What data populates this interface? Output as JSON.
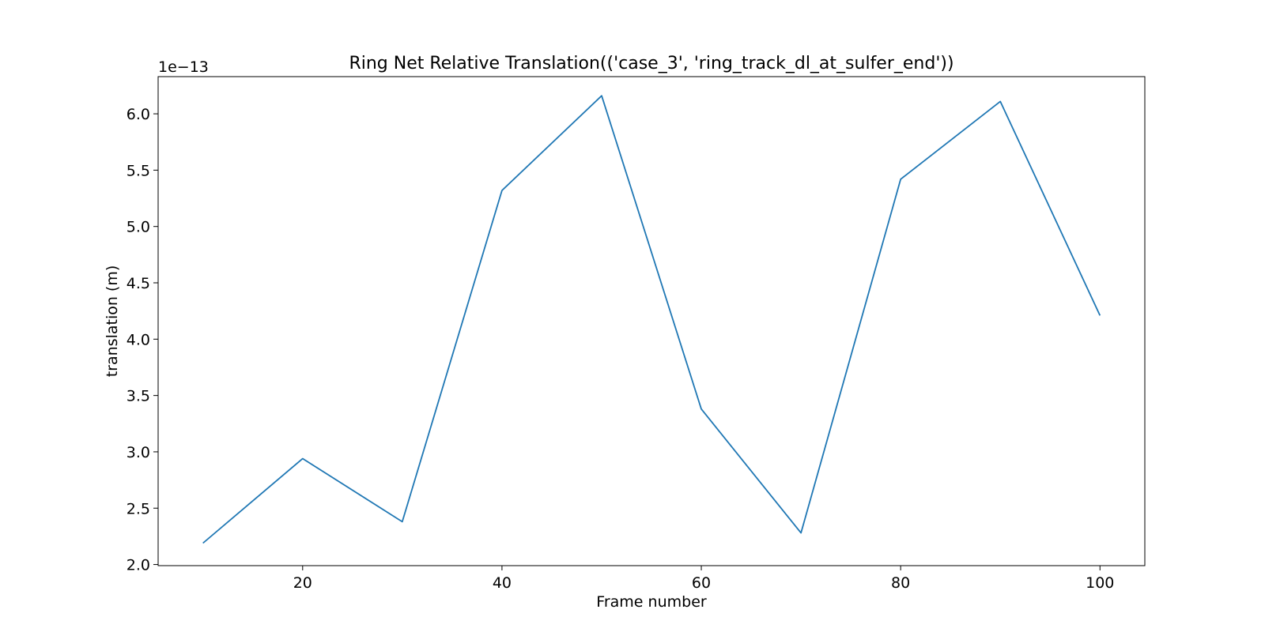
{
  "chart_data": {
    "type": "line",
    "title": "Ring Net Relative Translation(('case_3', 'ring_track_dl_at_sulfer_end'))",
    "xlabel": "Frame number",
    "ylabel": "translation (m)",
    "y_offset_label": "1e−13",
    "xlim": [
      5.5,
      104.5
    ],
    "ylim": [
      1.99,
      6.33
    ],
    "x_ticks": [
      20,
      40,
      60,
      80,
      100
    ],
    "x_tick_labels": [
      "20",
      "40",
      "60",
      "80",
      "100"
    ],
    "y_ticks": [
      2.0,
      2.5,
      3.0,
      3.5,
      4.0,
      4.5,
      5.0,
      5.5,
      6.0
    ],
    "y_tick_labels": [
      "2.0",
      "2.5",
      "3.0",
      "3.5",
      "4.0",
      "4.5",
      "5.0",
      "5.5",
      "6.0"
    ],
    "grid": false,
    "series": [
      {
        "color": "#1f77b4",
        "x": [
          10,
          20,
          30,
          40,
          50,
          60,
          70,
          80,
          90,
          100
        ],
        "y": [
          2.19,
          2.94,
          2.38,
          5.32,
          6.16,
          3.38,
          2.28,
          5.42,
          6.11,
          4.21
        ]
      }
    ]
  }
}
